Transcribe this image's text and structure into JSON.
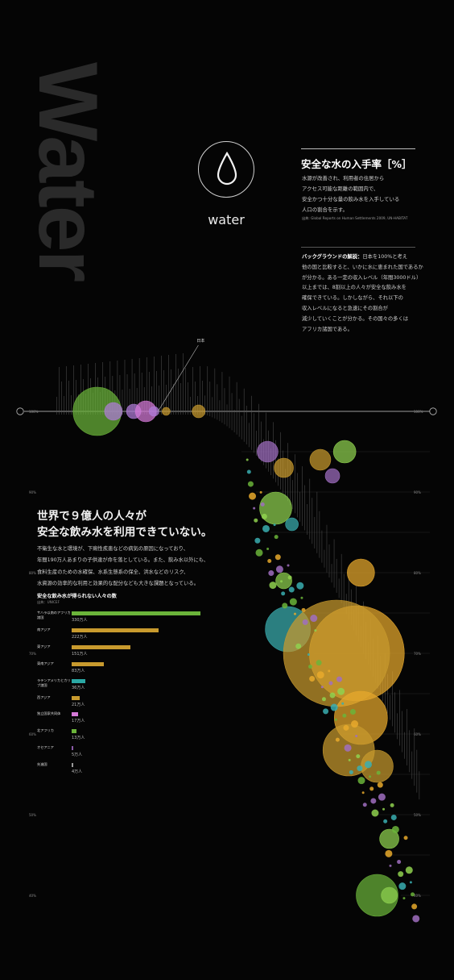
{
  "hero": {
    "big_word": "Water",
    "icon": "water-drop-icon",
    "icon_label": "water"
  },
  "definition": {
    "title": "安全な水の入手率［%］",
    "lines": [
      "水源が改善され、利用者の住居から",
      "アクセス可能な距離の範囲内で、",
      "安全かつ十分な量の飲み水を入手している",
      "人口の割合を示す。"
    ],
    "source": "出典: Global Reports on Human Settlements 2009, UN-HABITAT"
  },
  "background": {
    "lead": "バックグラウンドの解説：",
    "lines": [
      "日本を100%と考え",
      "他の国と比較すると、いかに水に恵まれた国であるか",
      "が分かる。ある一定の収入レベル（年間3000ドル）",
      "以上までは、8割以上の人々が安全な飲み水を",
      "確保できている。しかしながら、それ以下の",
      "収入レベルになると急速にその割合が",
      "減少していくことが分かる。その国々の多くは",
      "アフリカ諸国である。"
    ]
  },
  "headline": {
    "line1": "世界で９億人の人々が",
    "line2": "安全な飲み水を利用できていない。"
  },
  "lede": {
    "lines": [
      "不衛生な水と環境が、下痢性疾患などの病気の原因になっており、",
      "年間190万人あまりの子供達が命を落としている。また、飲み水以外にも、",
      "食料生産のための水確保、水系生態系の保全、洪水などのリスク、",
      "水資源の効率的な利用と効果的な配分なども大きな課題となっている。"
    ]
  },
  "colors": {
    "sub_saharan_africa": "#6bb43a",
    "south_asia": "#c89a2e",
    "east_asia": "#b07cd8",
    "latin_america": "#2aa7a3",
    "southeast_asia": "#c89a2e",
    "west_asia": "#c89a2e",
    "cis": "#d57ad8",
    "north_africa": "#6bb43a",
    "oceania": "#8a5aa8",
    "developed": "#999999",
    "small_bubble_green": "#8fd14f",
    "small_bubble_gold": "#e8a92c",
    "small_bubble_teal": "#3aaeb0",
    "small_bubble_purple": "#a06ec0"
  },
  "chart_data": [
    {
      "type": "bar",
      "title": "安全な飲み水が得られない人々の数",
      "source": "出典：UNICEF",
      "categories": [
        "サハラ以南のアフリカ諸国",
        "南アジア",
        "東アジア",
        "東南アジア",
        "ラテンアメリカとカリブ諸国",
        "西アジア",
        "独立国家共同体",
        "北アフリカ",
        "オセアニア",
        "先進国"
      ],
      "values": [
        330,
        222,
        151,
        83,
        36,
        21,
        17,
        13,
        5,
        4
      ],
      "value_labels": [
        "330万人",
        "222万人",
        "151万人",
        "83万人",
        "36万人",
        "21万人",
        "17万人",
        "13万人",
        "5万人",
        "4万人"
      ],
      "unit": "万人",
      "xlim": [
        0,
        330
      ]
    },
    {
      "type": "scatter",
      "title": "",
      "y_axis": "安全な水の入手率［%］",
      "reference_marker": "日本",
      "ticks": [
        "100%",
        "90%",
        "80%",
        "70%",
        "60%",
        "50%",
        "40%"
      ],
      "ylim": [
        35,
        100
      ],
      "x_order": "income_high_to_low",
      "series_note": "bubble area = population",
      "points": [
        {
          "x": 0.18,
          "y": 100,
          "r": 30,
          "region": "developed",
          "color": "#6bb43a"
        },
        {
          "x": 0.22,
          "y": 100,
          "r": 11,
          "region": "developed",
          "color": "#b07cd8"
        },
        {
          "x": 0.27,
          "y": 100,
          "r": 9,
          "region": "developed",
          "color": "#b07cd8"
        },
        {
          "x": 0.3,
          "y": 100,
          "r": 13,
          "region": "east_asia",
          "color": "#d57ad8"
        },
        {
          "x": 0.32,
          "y": 100,
          "r": 6,
          "region": "developed",
          "color": "#b07cd8"
        },
        {
          "x": 0.35,
          "y": 100,
          "r": 5,
          "region": "developed",
          "color": "#c89a2e"
        },
        {
          "x": 0.43,
          "y": 100,
          "r": 8,
          "region": "southeast_asia",
          "color": "#c89a2e"
        },
        {
          "x": 0.6,
          "y": 95,
          "r": 13,
          "region": "latin_america",
          "color": "#a06ec0"
        },
        {
          "x": 0.73,
          "y": 94,
          "r": 13,
          "region": "southeast_asia",
          "color": "#c89a2e"
        },
        {
          "x": 0.79,
          "y": 95,
          "r": 14,
          "region": "sub_saharan_africa",
          "color": "#8fd14f"
        },
        {
          "x": 0.64,
          "y": 93,
          "r": 12,
          "region": "latin_america",
          "color": "#c89a2e"
        },
        {
          "x": 0.62,
          "y": 88,
          "r": 20,
          "region": "latin_america",
          "color": "#8fd14f"
        },
        {
          "x": 0.66,
          "y": 86,
          "r": 8,
          "region": "latin_america",
          "color": "#3aaeb0"
        },
        {
          "x": 0.76,
          "y": 92,
          "r": 9,
          "region": "cis",
          "color": "#a06ec0"
        },
        {
          "x": 0.64,
          "y": 79,
          "r": 10,
          "region": "north_africa",
          "color": "#8fd14f"
        },
        {
          "x": 0.83,
          "y": 80,
          "r": 17,
          "region": "southeast_asia",
          "color": "#e8a92c"
        },
        {
          "x": 0.65,
          "y": 73,
          "r": 28,
          "region": "latin_america",
          "color": "#3aaeb0"
        },
        {
          "x": 0.82,
          "y": 70,
          "r": 59,
          "region": "south_asia",
          "color": "#e8a92c"
        },
        {
          "x": 0.77,
          "y": 70,
          "r": 66,
          "region": "east_asia",
          "color": "#c89a2e"
        },
        {
          "x": 0.83,
          "y": 62,
          "r": 33,
          "region": "southeast_asia",
          "color": "#e8a92c"
        },
        {
          "x": 0.8,
          "y": 58,
          "r": 32,
          "region": "west_asia",
          "color": "#c89a2e"
        },
        {
          "x": 0.87,
          "y": 56,
          "r": 20,
          "region": "west_asia",
          "color": "#c89a2e"
        },
        {
          "x": 0.9,
          "y": 47,
          "r": 12,
          "region": "sub_saharan_africa",
          "color": "#8fd14f"
        },
        {
          "x": 0.87,
          "y": 40,
          "r": 26,
          "region": "sub_saharan_africa",
          "color": "#6bb43a"
        },
        {
          "x": 0.9,
          "y": 40,
          "r": 10,
          "region": "sub_saharan_africa",
          "color": "#8fd14f"
        }
      ]
    }
  ]
}
